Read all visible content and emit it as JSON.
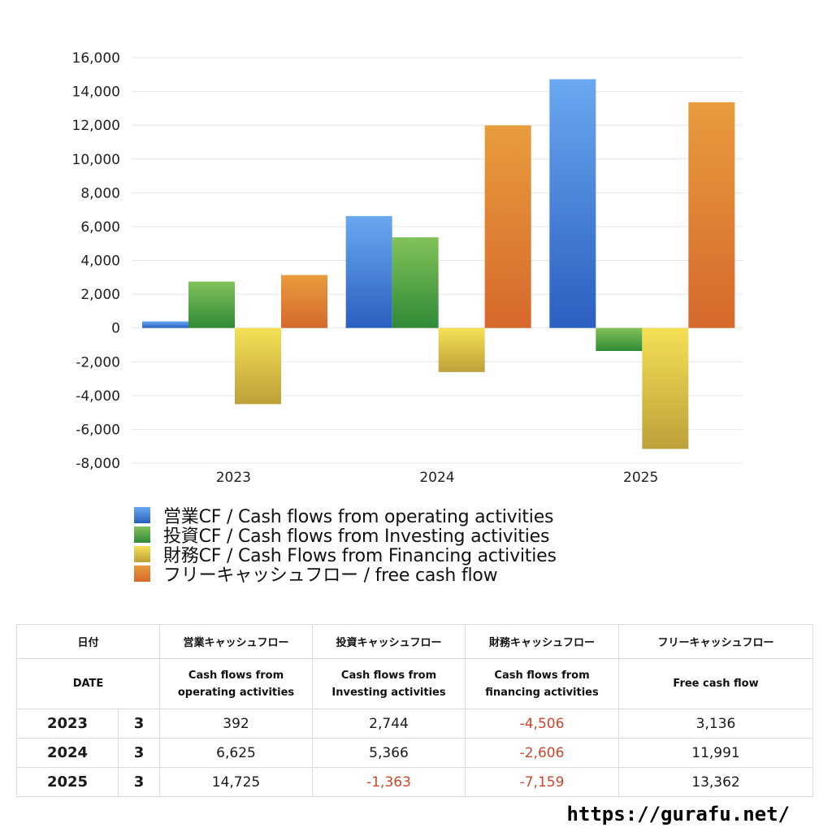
{
  "chart_data": {
    "type": "bar",
    "categories": [
      "2023",
      "2024",
      "2025"
    ],
    "series": [
      {
        "name": "営業CF / Cash flows from operating activities",
        "values": [
          392,
          6625,
          14725
        ],
        "color": "#3a7bdc"
      },
      {
        "name": "投資CF / Cash flows from Investing activities",
        "values": [
          2744,
          5366,
          -1363
        ],
        "color": "#4f9e3c"
      },
      {
        "name": "財務CF / Cash Flows from Financing activities",
        "values": [
          -4506,
          -2606,
          -7159
        ],
        "color": "#e8cf3e"
      },
      {
        "name": "フリーキャッシュフロー / free cash flow",
        "values": [
          3136,
          11991,
          13362
        ],
        "color": "#e0762e"
      }
    ],
    "ylim": [
      -8000,
      16000
    ],
    "yticks": [
      16000,
      14000,
      12000,
      10000,
      8000,
      6000,
      4000,
      2000,
      0,
      -2000,
      -4000,
      -6000,
      -8000
    ],
    "ytick_labels": [
      "16,000",
      "14,000",
      "12,000",
      "10,000",
      "8,000",
      "6,000",
      "4,000",
      "2,000",
      "0",
      "-2,000",
      "-4,000",
      "-6,000",
      "-8,000"
    ],
    "grid": true,
    "legend_position": "bottom-left"
  },
  "table": {
    "headers_jp": [
      "日付",
      "営業キャッシュフロー",
      "投資キャッシュフロー",
      "財務キャッシュフロー",
      "フリーキャッシュフロー"
    ],
    "headers_en": {
      "date": "DATE",
      "operating": [
        "Cash flows from",
        "operating activities"
      ],
      "investing": [
        "Cash flows from",
        "Investing activities"
      ],
      "financing": [
        "Cash flows from",
        "financing activities"
      ],
      "free": "Free cash flow"
    },
    "rows": [
      {
        "year": "2023",
        "month": "3",
        "operating": "392",
        "investing": "2,744",
        "financing": "-4,506",
        "free": "3,136"
      },
      {
        "year": "2024",
        "month": "3",
        "operating": "6,625",
        "investing": "5,366",
        "financing": "-2,606",
        "free": "11,991"
      },
      {
        "year": "2025",
        "month": "3",
        "operating": "14,725",
        "investing": "-1,363",
        "financing": "-7,159",
        "free": "13,362"
      }
    ]
  },
  "footer": {
    "url": "https://gurafu.net/"
  }
}
